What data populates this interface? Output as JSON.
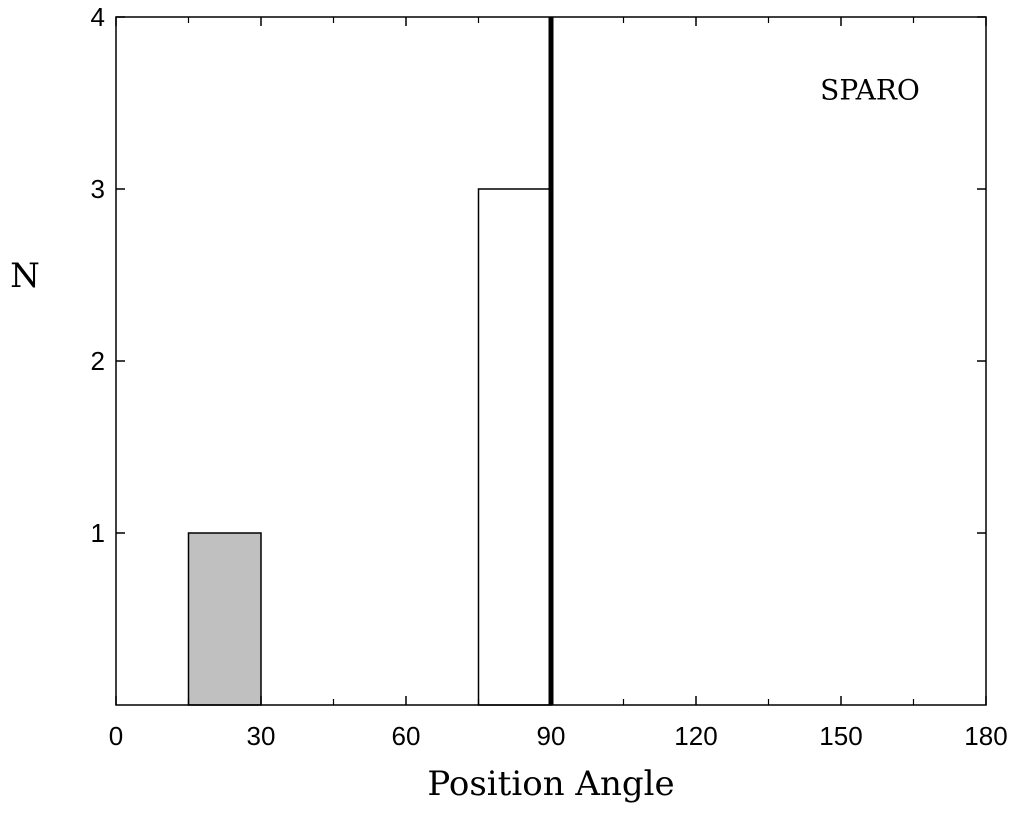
{
  "chart_data": {
    "type": "bar",
    "title": "",
    "xlabel": "Position Angle",
    "ylabel": "N",
    "xlim": [
      0,
      180
    ],
    "ylim": [
      0,
      4
    ],
    "xticks": [
      0,
      30,
      60,
      90,
      120,
      150,
      180
    ],
    "xminor_step": 15,
    "yticks": [
      1,
      2,
      3,
      4
    ],
    "ylabels_shown": [
      "1",
      "2",
      "3",
      "4"
    ],
    "xlabels_shown": [
      "0",
      "30",
      "60",
      "90",
      "120",
      "150",
      "180"
    ],
    "grid": false,
    "bin_width": 15,
    "series": [
      {
        "bins": [
          {
            "x0": 15,
            "x1": 30,
            "value": 1
          }
        ],
        "color": "#c0c0c0"
      },
      {
        "bins": [
          {
            "x0": 75,
            "x1": 90,
            "value": 3
          }
        ],
        "color": "#ffffff"
      }
    ],
    "vline": {
      "x": 90,
      "color": "#000000"
    },
    "annotation": "SPARO"
  }
}
